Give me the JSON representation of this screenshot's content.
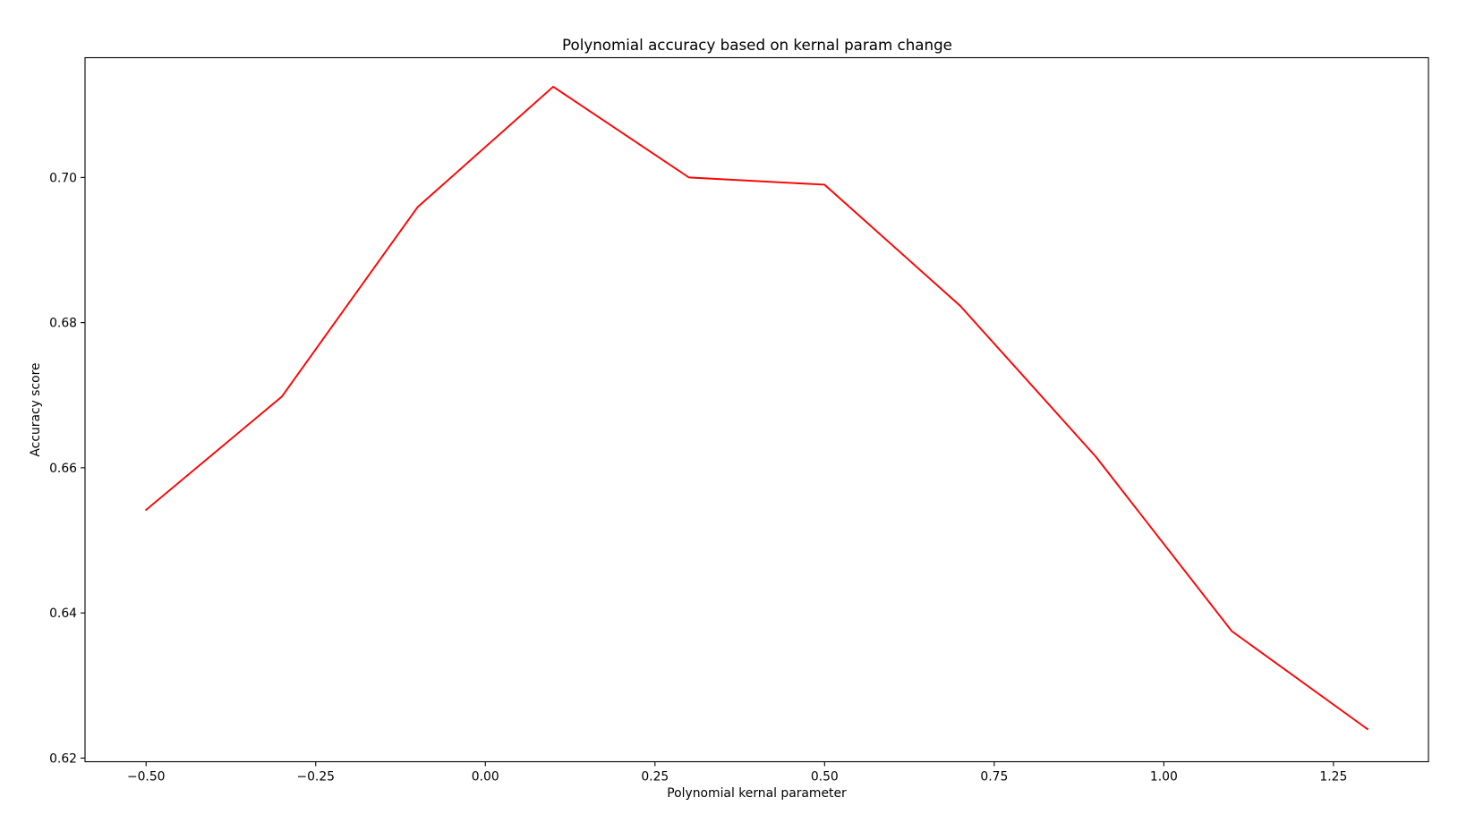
{
  "chart_data": {
    "type": "line",
    "title": "Polynomial accuracy based on kernal param change",
    "xlabel": "Polynomial kernal parameter",
    "ylabel": "Accuracy score",
    "x": [
      -0.5,
      -0.3,
      -0.1,
      0.1,
      0.3,
      0.5,
      0.7,
      0.9,
      1.1,
      1.3
    ],
    "series": [
      {
        "values": [
          0.6542,
          0.6698,
          0.6959,
          0.7125,
          0.7,
          0.699,
          0.6823,
          0.6615,
          0.6375,
          0.624
        ],
        "color": "#ff0000"
      }
    ],
    "xlim": [
      -0.59,
      1.39
    ],
    "ylim": [
      0.6195,
      0.7165
    ],
    "xticks": [
      -0.5,
      -0.25,
      0.0,
      0.25,
      0.5,
      0.75,
      1.0,
      1.25
    ],
    "xtick_labels": [
      "−0.50",
      "−0.25",
      "0.00",
      "0.25",
      "0.50",
      "0.75",
      "1.00",
      "1.25"
    ],
    "yticks": [
      0.62,
      0.64,
      0.66,
      0.68,
      0.7
    ],
    "ytick_labels": [
      "0.62",
      "0.64",
      "0.66",
      "0.68",
      "0.70"
    ],
    "grid": false,
    "legend": "none"
  }
}
